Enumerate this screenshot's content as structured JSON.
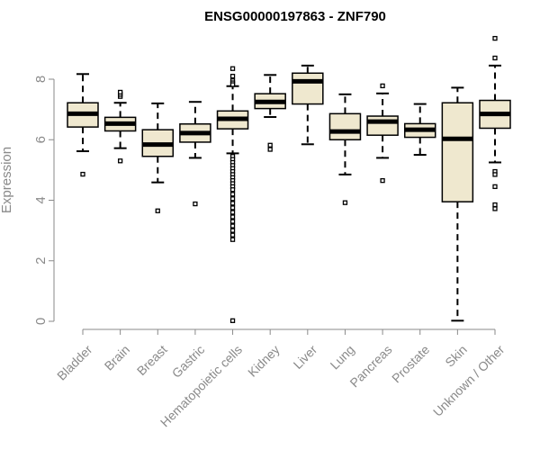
{
  "chart_data": {
    "type": "boxplot",
    "title": "ENSG00000197863 - ZNF790",
    "ylabel": "Expression",
    "xlabel": "",
    "ylim": [
      0,
      9.3
    ],
    "yticks": [
      0,
      2,
      4,
      6,
      8
    ],
    "grid": false,
    "legend": "none",
    "box_fill": "#efe8cf",
    "stroke_color": "#000000",
    "axis_color": "#8a8a8a",
    "categories": [
      "Bladder",
      "Brain",
      "Breast",
      "Gastric",
      "Hematopoietic cells",
      "Kidney",
      "Liver",
      "Lung",
      "Pancreas",
      "Prostate",
      "Skin",
      "Unknown / Other"
    ],
    "boxes": [
      {
        "category": "Bladder",
        "q1": 6.42,
        "median": 6.86,
        "q3": 7.22,
        "whisker_low": 5.62,
        "whisker_high": 8.17,
        "outliers": [
          4.86
        ]
      },
      {
        "category": "Brain",
        "q1": 6.29,
        "median": 6.53,
        "q3": 6.74,
        "whisker_low": 5.72,
        "whisker_high": 7.22,
        "outliers": [
          7.43,
          7.5,
          7.57,
          5.3
        ]
      },
      {
        "category": "Breast",
        "q1": 5.45,
        "median": 5.84,
        "q3": 6.33,
        "whisker_low": 4.59,
        "whisker_high": 7.2,
        "outliers": [
          3.65
        ]
      },
      {
        "category": "Gastric",
        "q1": 5.92,
        "median": 6.22,
        "q3": 6.52,
        "whisker_low": 5.4,
        "whisker_high": 7.25,
        "outliers": [
          3.88
        ]
      },
      {
        "category": "Hematopoietic cells",
        "q1": 6.36,
        "median": 6.69,
        "q3": 6.95,
        "whisker_low": 5.55,
        "whisker_high": 7.77,
        "outliers": [
          8.35,
          8.1,
          7.95,
          7.88,
          7.82,
          5.45,
          5.35,
          5.25,
          5.15,
          5.05,
          4.95,
          4.85,
          4.75,
          4.65,
          4.55,
          4.45,
          4.35,
          4.2,
          4.05,
          3.9,
          3.75,
          3.6,
          3.45,
          3.3,
          3.15,
          3.0,
          2.85,
          2.7,
          0.02
        ]
      },
      {
        "category": "Kidney",
        "q1": 7.03,
        "median": 7.25,
        "q3": 7.52,
        "whisker_low": 6.75,
        "whisker_high": 8.14,
        "outliers": [
          5.82,
          5.68
        ]
      },
      {
        "category": "Liver",
        "q1": 7.18,
        "median": 7.93,
        "q3": 8.2,
        "whisker_low": 5.85,
        "whisker_high": 8.45,
        "outliers": []
      },
      {
        "category": "Lung",
        "q1": 6.0,
        "median": 6.27,
        "q3": 6.86,
        "whisker_low": 4.85,
        "whisker_high": 7.5,
        "outliers": [
          3.92
        ]
      },
      {
        "category": "Pancreas",
        "q1": 6.15,
        "median": 6.6,
        "q3": 6.78,
        "whisker_low": 5.4,
        "whisker_high": 7.53,
        "outliers": [
          7.78,
          4.65
        ]
      },
      {
        "category": "Prostate",
        "q1": 6.08,
        "median": 6.33,
        "q3": 6.53,
        "whisker_low": 5.5,
        "whisker_high": 7.18,
        "outliers": []
      },
      {
        "category": "Skin",
        "q1": 3.95,
        "median": 6.03,
        "q3": 7.22,
        "whisker_low": 0.02,
        "whisker_high": 7.72,
        "outliers": []
      },
      {
        "category": "Unknown / Other",
        "q1": 6.38,
        "median": 6.85,
        "q3": 7.3,
        "whisker_low": 5.25,
        "whisker_high": 8.45,
        "outliers": [
          9.35,
          8.7,
          4.95,
          4.85,
          4.45,
          3.85,
          3.72
        ]
      }
    ]
  }
}
